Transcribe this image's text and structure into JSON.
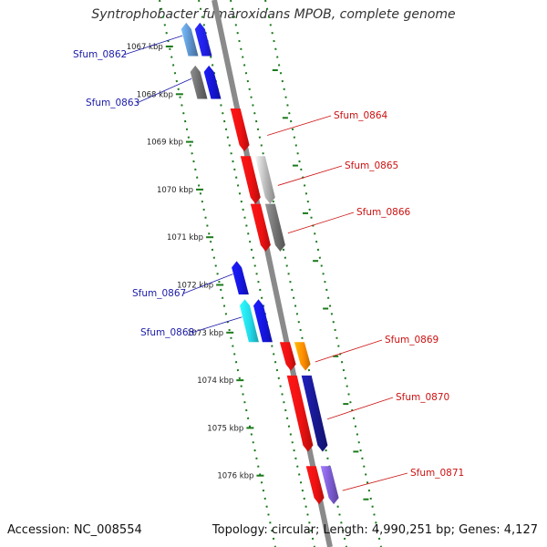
{
  "title": "Syntrophobacter fumaroxidans MPOB, complete genome",
  "footer": {
    "accession": "Accession: NC_008554",
    "info": "Topology: circular; Length: 4,990,251 bp; Genes: 4,127"
  },
  "colors": {
    "backbone": "#8a8a8a",
    "tick_green": "#1a7a1a",
    "forward_label": "#1a1aa8",
    "reverse_label": "#cc1111"
  },
  "kbp_labels": [
    {
      "kbp": 1067,
      "text": "1067 kbp"
    },
    {
      "kbp": 1068,
      "text": "1068 kbp"
    },
    {
      "kbp": 1069,
      "text": "1069 kbp"
    },
    {
      "kbp": 1070,
      "text": "1070 kbp"
    },
    {
      "kbp": 1071,
      "text": "1071 kbp"
    },
    {
      "kbp": 1072,
      "text": "1072 kbp"
    },
    {
      "kbp": 1073,
      "text": "1073 kbp"
    },
    {
      "kbp": 1074,
      "text": "1074 kbp"
    },
    {
      "kbp": 1075,
      "text": "1075 kbp"
    },
    {
      "kbp": 1076,
      "text": "1076 kbp"
    }
  ],
  "genes": [
    {
      "name": "Sfum_0862",
      "strand": "forward",
      "start": 1066.5,
      "end": 1067.2,
      "colors": [
        "#5a8ec8",
        "#2020e8"
      ]
    },
    {
      "name": "Sfum_0863",
      "strand": "forward",
      "start": 1067.4,
      "end": 1068.1,
      "colors": [
        "#6a6a6a",
        "#1515d0"
      ]
    },
    {
      "name": "Sfum_0864",
      "strand": "reverse",
      "start": 1068.3,
      "end": 1069.2,
      "colors": [
        "#ee1111"
      ]
    },
    {
      "name": "Sfum_0865",
      "strand": "reverse",
      "start": 1069.3,
      "end": 1070.3,
      "colors": [
        "#ee1111",
        "#b8b8b8"
      ]
    },
    {
      "name": "Sfum_0866",
      "strand": "reverse",
      "start": 1070.3,
      "end": 1071.3,
      "colors": [
        "#ee1111",
        "#707070"
      ]
    },
    {
      "name": "Sfum_0867",
      "strand": "forward",
      "start": 1071.5,
      "end": 1072.2,
      "colors": [
        "#1515e0"
      ]
    },
    {
      "name": "Sfum_0868",
      "strand": "forward",
      "start": 1072.3,
      "end": 1073.2,
      "colors": [
        "#22d8e8",
        "#1515e0"
      ]
    },
    {
      "name": "Sfum_0869",
      "strand": "reverse",
      "start": 1073.2,
      "end": 1073.8,
      "colors": [
        "#ee1111",
        "#ff8c00"
      ]
    },
    {
      "name": "Sfum_0870",
      "strand": "reverse",
      "start": 1073.9,
      "end": 1075.5,
      "colors": [
        "#ee1111",
        "#181890"
      ]
    },
    {
      "name": "Sfum_0871",
      "strand": "reverse",
      "start": 1075.8,
      "end": 1076.6,
      "colors": [
        "#ee1111",
        "#7a5ad0"
      ]
    }
  ]
}
